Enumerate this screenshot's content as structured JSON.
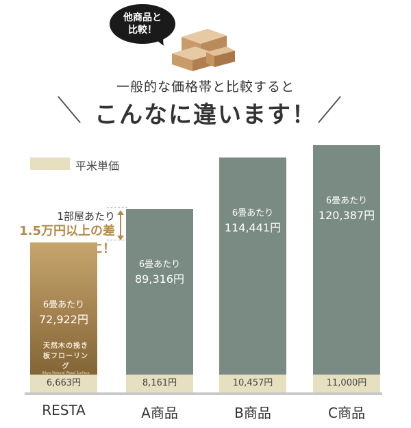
{
  "bubble": {
    "line1": "他商品と",
    "line2": "比較！"
  },
  "headline": {
    "line1": "一般的な価格帯と比較すると",
    "line2": "こんなに違います！"
  },
  "legend": {
    "label": "平米単価",
    "swatch_color": "#e6dfc0"
  },
  "annotation": {
    "line1": "1部屋あたり",
    "line2": "1.5万円以上の差に！"
  },
  "flooring_label": {
    "line1": "天然木の挽き板フローリング",
    "line2": "Ikkyu Natural Wood Surface"
  },
  "chart_data": {
    "type": "bar",
    "categories": [
      "RESTA",
      "A商品",
      "B商品",
      "C商品"
    ],
    "series": [
      {
        "name": "6畳あたり",
        "values": [
          72922,
          89316,
          114441,
          120387
        ],
        "labels": [
          "72,922円",
          "89,316円",
          "114,441円",
          "120,387円"
        ]
      },
      {
        "name": "平米単価",
        "values": [
          6663,
          8161,
          10457,
          11000
        ],
        "labels": [
          "6,663円",
          "8,161円",
          "10,457円",
          "11,000円"
        ]
      }
    ],
    "bar_prefix": "6畳あたり",
    "colors": {
      "resta": "#a58450",
      "others": "#7a8b84",
      "sqm": "#e6dfc0"
    }
  }
}
